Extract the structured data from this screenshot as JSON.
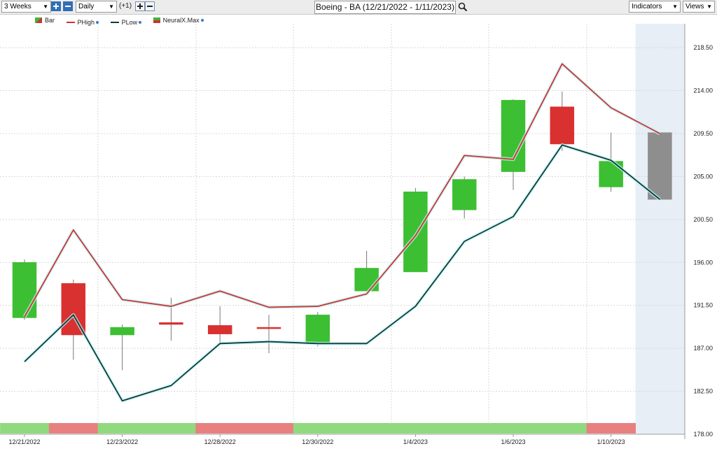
{
  "toolbar": {
    "period": "3 Weeks",
    "interval": "Daily",
    "offset": "(+1)",
    "title": "Boeing - BA (12/21/2022 - 1/11/2023)",
    "indicators": "Indicators",
    "views": "Views"
  },
  "legend": [
    {
      "label": "Bar",
      "color": "#3cb832"
    },
    {
      "label": "PHigh",
      "color": "#d03232"
    },
    {
      "label": "PLow",
      "color": "#0d3b3b"
    },
    {
      "label": "NeuralX.Max",
      "color": "#d03232"
    }
  ],
  "chart_data": {
    "type": "candlestick",
    "x": [
      "12/21/2022",
      "12/22/2022",
      "12/23/2022",
      "12/27/2022",
      "12/28/2022",
      "12/29/2022",
      "12/30/2022",
      "1/3/2023",
      "1/4/2023",
      "1/5/2023",
      "1/6/2023",
      "1/9/2023",
      "1/10/2023",
      "1/11/2023"
    ],
    "x_tick_labels": [
      "12/21/2022",
      "12/23/2022",
      "12/28/2022",
      "12/30/2022",
      "1/4/2023",
      "1/6/2023",
      "1/10/2023"
    ],
    "x_tick_indices": [
      0,
      2,
      4,
      6,
      8,
      10,
      12
    ],
    "candles": [
      {
        "open": 190.2,
        "high": 196.3,
        "low": 190.0,
        "close": 196.0,
        "color": "green"
      },
      {
        "open": 193.8,
        "high": 194.2,
        "low": 185.8,
        "close": 188.4,
        "color": "red"
      },
      {
        "open": 188.4,
        "high": 189.5,
        "low": 184.7,
        "close": 189.2,
        "color": "green"
      },
      {
        "open": 189.5,
        "high": 192.3,
        "low": 187.8,
        "close": 189.7,
        "color": "red"
      },
      {
        "open": 189.4,
        "high": 191.4,
        "low": 187.4,
        "close": 188.5,
        "color": "red"
      },
      {
        "open": 189.1,
        "high": 190.5,
        "low": 186.5,
        "close": 189.2,
        "color": "red"
      },
      {
        "open": 187.6,
        "high": 190.8,
        "low": 187.2,
        "close": 190.5,
        "color": "green"
      },
      {
        "open": 193.0,
        "high": 197.2,
        "low": 193.0,
        "close": 195.4,
        "color": "green"
      },
      {
        "open": 195.0,
        "high": 203.8,
        "low": 195.0,
        "close": 203.4,
        "color": "green"
      },
      {
        "open": 201.5,
        "high": 205.0,
        "low": 200.6,
        "close": 204.7,
        "color": "green"
      },
      {
        "open": 205.5,
        "high": 213.1,
        "low": 203.6,
        "close": 213.0,
        "color": "green"
      },
      {
        "open": 212.3,
        "high": 213.9,
        "low": 207.7,
        "close": 208.4,
        "color": "red"
      },
      {
        "open": 203.9,
        "high": 209.6,
        "low": 203.4,
        "close": 206.6,
        "color": "green"
      },
      {
        "open": 209.6,
        "high": 209.6,
        "low": 202.6,
        "close": 202.6,
        "color": "gray"
      }
    ],
    "series": [
      {
        "name": "PHigh",
        "color": "#d03232",
        "values": [
          190.3,
          199.4,
          192.1,
          191.4,
          193.0,
          191.3,
          191.4,
          192.7,
          198.8,
          207.2,
          206.8,
          216.8,
          212.2,
          209.5
        ]
      },
      {
        "name": "PLow",
        "color": "#0d3b3b",
        "values": [
          185.6,
          190.5,
          181.5,
          183.1,
          187.5,
          187.7,
          187.5,
          187.5,
          191.4,
          198.2,
          200.8,
          208.3,
          206.7,
          202.6
        ]
      }
    ],
    "signal_bar": [
      "green",
      "red",
      "green",
      "green",
      "red",
      "red",
      "green",
      "green",
      "green",
      "green",
      "green",
      "green",
      "red",
      "none"
    ],
    "y_ticks": [
      "178.00",
      "182.50",
      "187.00",
      "191.50",
      "196.00",
      "200.50",
      "205.00",
      "209.50",
      "214.00",
      "218.50"
    ],
    "ylim": [
      178.0,
      221.0
    ]
  }
}
